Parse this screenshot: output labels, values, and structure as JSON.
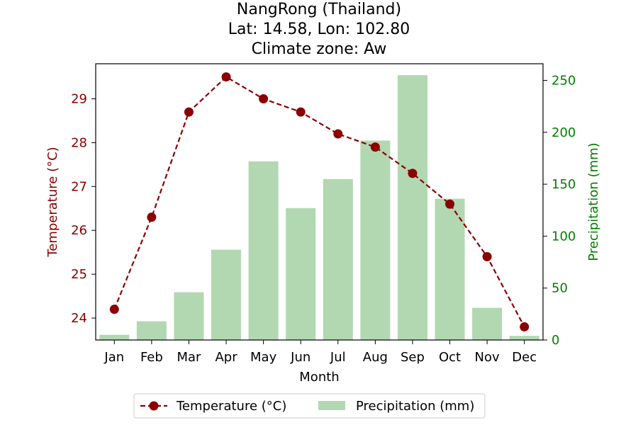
{
  "chart_data": {
    "type": "bar+line",
    "title_lines": [
      "NangRong (Thailand)",
      "Lat: 14.58, Lon: 102.80",
      "Climate zone: Aw"
    ],
    "xlabel": "Month",
    "ylabel_left": "Temperature (°C)",
    "ylabel_right": "Precipitation (mm)",
    "categories": [
      "Jan",
      "Feb",
      "Mar",
      "Apr",
      "May",
      "Jun",
      "Jul",
      "Aug",
      "Sep",
      "Oct",
      "Nov",
      "Dec"
    ],
    "series": [
      {
        "name": "Temperature (°C)",
        "kind": "line",
        "axis": "left",
        "color": "#8b0000",
        "values": [
          24.2,
          26.3,
          28.7,
          29.5,
          29.0,
          28.7,
          28.2,
          27.9,
          27.3,
          26.6,
          25.4,
          23.8
        ]
      },
      {
        "name": "Precipitation (mm)",
        "kind": "bar",
        "axis": "right",
        "color": "#b2d8b2",
        "values": [
          5,
          18,
          46,
          87,
          172,
          127,
          155,
          192,
          255,
          136,
          31,
          4
        ]
      }
    ],
    "ylim_left": [
      23.5,
      29.8
    ],
    "yticks_left": [
      24,
      25,
      26,
      27,
      28,
      29
    ],
    "ylim_right": [
      0,
      266
    ],
    "yticks_right": [
      0,
      50,
      100,
      150,
      200,
      250
    ],
    "grid": false,
    "legend_position": "bottom-center"
  }
}
